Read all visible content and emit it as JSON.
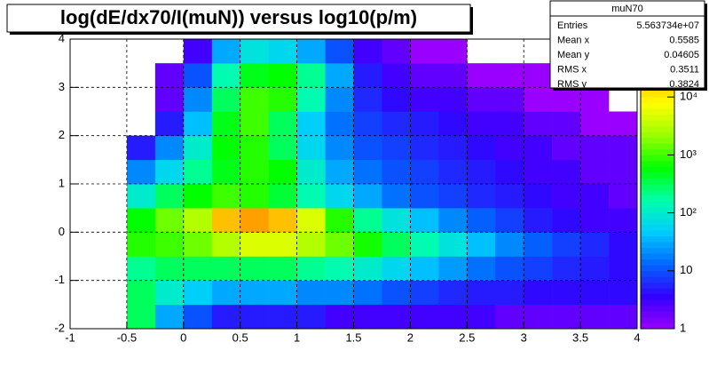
{
  "chart_data": {
    "type": "heatmap",
    "title": "log(dE/dx70/I(muN)) versus log10(p/m)",
    "x_bins": [
      -1,
      -0.75,
      -0.5,
      -0.25,
      0,
      0.25,
      0.5,
      0.75,
      1,
      1.25,
      1.5,
      1.75,
      2,
      2.25,
      2.5,
      2.75,
      3,
      3.25,
      3.5,
      3.75,
      4
    ],
    "y_bins": [
      -2,
      -1.5,
      -1,
      -0.5,
      0,
      0.5,
      1,
      1.5,
      2,
      2.5,
      3,
      3.5,
      4
    ],
    "values": [
      [
        null,
        null,
        300,
        30,
        10,
        5,
        5,
        5,
        5,
        3,
        3,
        3,
        3,
        3,
        3,
        2,
        2,
        2,
        2,
        2
      ],
      [
        null,
        null,
        300,
        100,
        50,
        30,
        30,
        30,
        20,
        20,
        15,
        10,
        8,
        6,
        5,
        5,
        4,
        4,
        4,
        4
      ],
      [
        null,
        null,
        200,
        300,
        300,
        300,
        300,
        300,
        200,
        150,
        100,
        60,
        40,
        25,
        15,
        10,
        8,
        6,
        5,
        4
      ],
      [
        null,
        null,
        800,
        1000,
        1500,
        3000,
        5000,
        5000,
        3000,
        1500,
        700,
        300,
        150,
        80,
        40,
        20,
        12,
        8,
        6,
        4
      ],
      [
        null,
        null,
        600,
        1500,
        3000,
        20000,
        30000,
        20000,
        5000,
        800,
        200,
        80,
        40,
        20,
        12,
        8,
        5,
        4,
        3,
        3
      ],
      [
        null,
        null,
        100,
        300,
        600,
        1000,
        800,
        400,
        150,
        60,
        30,
        15,
        10,
        8,
        6,
        5,
        4,
        3,
        3,
        2
      ],
      [
        null,
        null,
        20,
        60,
        200,
        500,
        800,
        600,
        100,
        30,
        15,
        10,
        8,
        6,
        5,
        4,
        3,
        3,
        2,
        2
      ],
      [
        null,
        null,
        5,
        20,
        100,
        600,
        800,
        300,
        60,
        20,
        10,
        8,
        6,
        5,
        4,
        3,
        3,
        2,
        2,
        2
      ],
      [
        null,
        null,
        null,
        5,
        40,
        500,
        1000,
        300,
        50,
        15,
        8,
        6,
        5,
        4,
        3,
        3,
        2,
        2,
        1,
        1
      ],
      [
        null,
        null,
        null,
        2,
        20,
        300,
        1000,
        800,
        150,
        20,
        6,
        4,
        3,
        3,
        2,
        2,
        1,
        1,
        1,
        null
      ],
      [
        null,
        null,
        null,
        2,
        10,
        150,
        500,
        600,
        200,
        30,
        5,
        3,
        2,
        2,
        1,
        1,
        1,
        null,
        null,
        null
      ],
      [
        null,
        null,
        null,
        null,
        3,
        30,
        80,
        60,
        30,
        10,
        3,
        2,
        1,
        1,
        null,
        null,
        null,
        null,
        null,
        null
      ]
    ],
    "xlim": [
      -1,
      4
    ],
    "ylim": [
      -2,
      4
    ],
    "zlim": [
      1,
      100000
    ],
    "zlog": true,
    "xticks": [
      -1,
      -0.5,
      0,
      0.5,
      1,
      1.5,
      2,
      2.5,
      3,
      3.5,
      4
    ],
    "yticks": [
      -2,
      -1,
      0,
      1,
      2,
      3,
      4
    ],
    "zticks": [
      1,
      10,
      {
        "value": 100,
        "label": "10²"
      },
      {
        "value": 1000,
        "label": "10³"
      },
      {
        "value": 10000,
        "label": "10⁴"
      }
    ],
    "grid": true,
    "palette": [
      "#9900ff",
      "#3300ff",
      "#0066ff",
      "#00ccff",
      "#00ffaa",
      "#00ff00",
      "#99ff00",
      "#ffff00",
      "#ffaa00",
      "#ff0000"
    ],
    "stats": {
      "title": "muN70",
      "rows": [
        {
          "label": "Entries",
          "value": "5.563734e+07"
        },
        {
          "label": "Mean x",
          "value": "0.5585"
        },
        {
          "label": "Mean y",
          "value": "0.04605"
        },
        {
          "label": "RMS x",
          "value": "0.3511"
        },
        {
          "label": "RMS y",
          "value": "0.3824"
        }
      ]
    }
  }
}
